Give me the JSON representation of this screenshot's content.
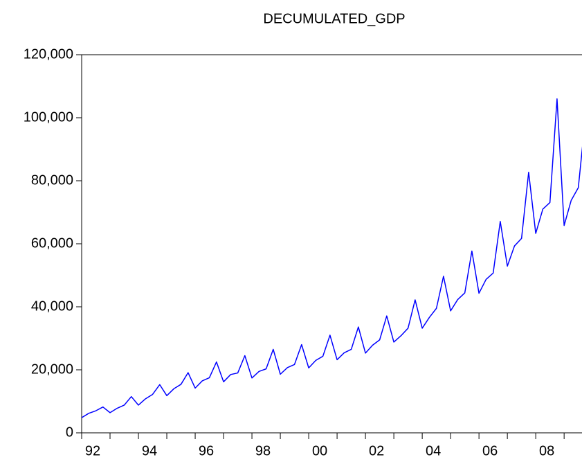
{
  "chart_data": {
    "type": "line",
    "title": "DECUMULATED_GDP",
    "x": [
      1992,
      1992.25,
      1992.5,
      1992.75,
      1993,
      1993.25,
      1993.5,
      1993.75,
      1994,
      1994.25,
      1994.5,
      1994.75,
      1995,
      1995.25,
      1995.5,
      1995.75,
      1996,
      1996.25,
      1996.5,
      1996.75,
      1997,
      1997.25,
      1997.5,
      1997.75,
      1998,
      1998.25,
      1998.5,
      1998.75,
      1999,
      1999.25,
      1999.5,
      1999.75,
      2000,
      2000.25,
      2000.5,
      2000.75,
      2001,
      2001.25,
      2001.5,
      2001.75,
      2002,
      2002.25,
      2002.5,
      2002.75,
      2003,
      2003.25,
      2003.5,
      2003.75,
      2004,
      2004.25,
      2004.5,
      2004.75,
      2005,
      2005.25,
      2005.5,
      2005.75,
      2006,
      2006.25,
      2006.5,
      2006.75,
      2007,
      2007.25,
      2007.5,
      2007.75,
      2008,
      2008.25,
      2008.5,
      2008.75,
      2009,
      2009.25,
      2009.5,
      2009.75
    ],
    "series": [
      {
        "name": "DECUMULATED_GDP",
        "color": "#0000ff",
        "values": [
          4800,
          6200,
          7000,
          8200,
          6400,
          7800,
          8800,
          11500,
          8800,
          10800,
          12200,
          15300,
          11800,
          14000,
          15400,
          19100,
          14200,
          16500,
          17500,
          22500,
          16200,
          18500,
          19000,
          24500,
          17400,
          19500,
          20300,
          26500,
          18600,
          20700,
          21700,
          28000,
          20600,
          23000,
          24300,
          31000,
          23200,
          25400,
          26500,
          33600,
          25300,
          27800,
          29500,
          37100,
          28800,
          30800,
          33200,
          42200,
          33200,
          36600,
          39500,
          49700,
          38700,
          42300,
          44400,
          57700,
          44300,
          48700,
          50700,
          67100,
          52900,
          59300,
          61700,
          82700,
          63300,
          71000,
          73100,
          106000,
          65800,
          73800,
          77800,
          100000
        ]
      }
    ],
    "xlim": [
      1992,
      2009.63
    ],
    "ylim": [
      0,
      120000
    ],
    "yticks": [
      0,
      {
        "value": 20000,
        "label": "20,000"
      },
      {
        "value": 40000,
        "label": "40,000"
      },
      {
        "value": 60000,
        "label": "60,000"
      },
      {
        "value": 80000,
        "label": "80,000"
      },
      {
        "value": 100000,
        "label": "100,000"
      },
      {
        "value": 120000,
        "label": "120,000"
      }
    ],
    "xticks": [
      {
        "value": 1992,
        "label": "92"
      },
      {
        "value": 1993,
        "label": null
      },
      {
        "value": 1994,
        "label": "94"
      },
      {
        "value": 1995,
        "label": null
      },
      {
        "value": 1996,
        "label": "96"
      },
      {
        "value": 1997,
        "label": null
      },
      {
        "value": 1998,
        "label": "98"
      },
      {
        "value": 1999,
        "label": null
      },
      {
        "value": 2000,
        "label": "00"
      },
      {
        "value": 2001,
        "label": null
      },
      {
        "value": 2002,
        "label": "02"
      },
      {
        "value": 2003,
        "label": null
      },
      {
        "value": 2004,
        "label": "04"
      },
      {
        "value": 2005,
        "label": null
      },
      {
        "value": 2006,
        "label": "06"
      },
      {
        "value": 2007,
        "label": null
      },
      {
        "value": 2008,
        "label": "08"
      },
      {
        "value": 2009,
        "label": null
      }
    ],
    "grid": false
  }
}
